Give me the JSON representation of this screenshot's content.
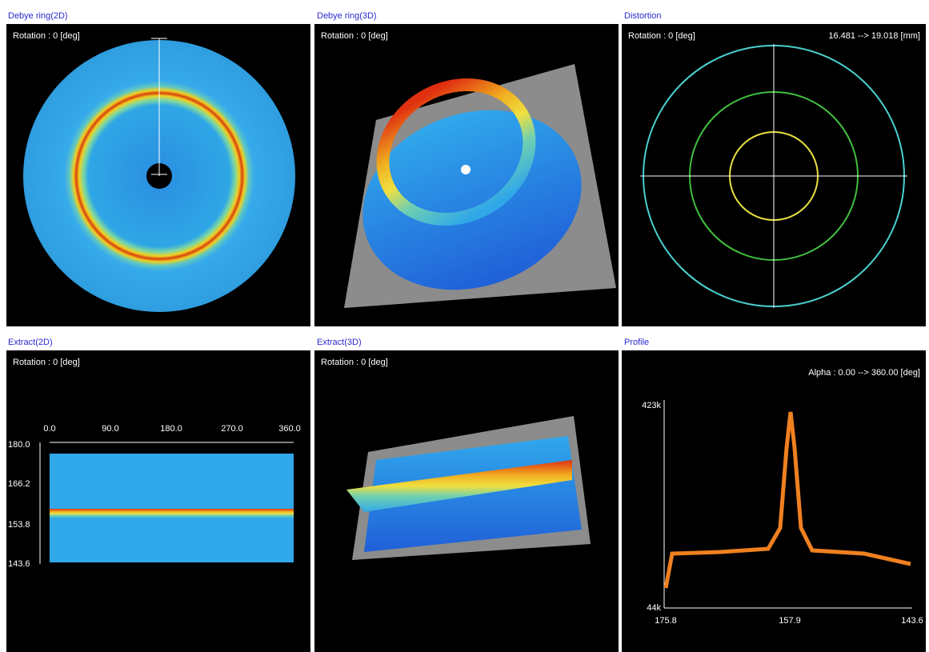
{
  "panels": [
    {
      "title": "Debye ring(2D)",
      "caption": "Rotation : 0 [deg]"
    },
    {
      "title": "Debye ring(3D)",
      "caption": "Rotation : 0 [deg]"
    },
    {
      "title": "Distortion",
      "caption": "Rotation : 0 [deg]",
      "range": "16.481 --> 19.018 [mm]"
    },
    {
      "title": "Extract(2D)",
      "caption": "Rotation : 0 [deg]",
      "x_labels": [
        "0.0",
        "90.0",
        "180.0",
        "270.0",
        "360.0"
      ],
      "y_labels": [
        "180.0",
        "166.2",
        "153.8",
        "143.6"
      ]
    },
    {
      "title": "Extract(3D)",
      "caption": "Rotation : 0 [deg]"
    },
    {
      "title": "Profile",
      "caption": "Alpha : 0.00 --> 360.00 [deg]",
      "y_labels": [
        "423k",
        "44k"
      ],
      "x_labels": [
        "175.8",
        "157.9",
        "143.6"
      ]
    }
  ]
}
